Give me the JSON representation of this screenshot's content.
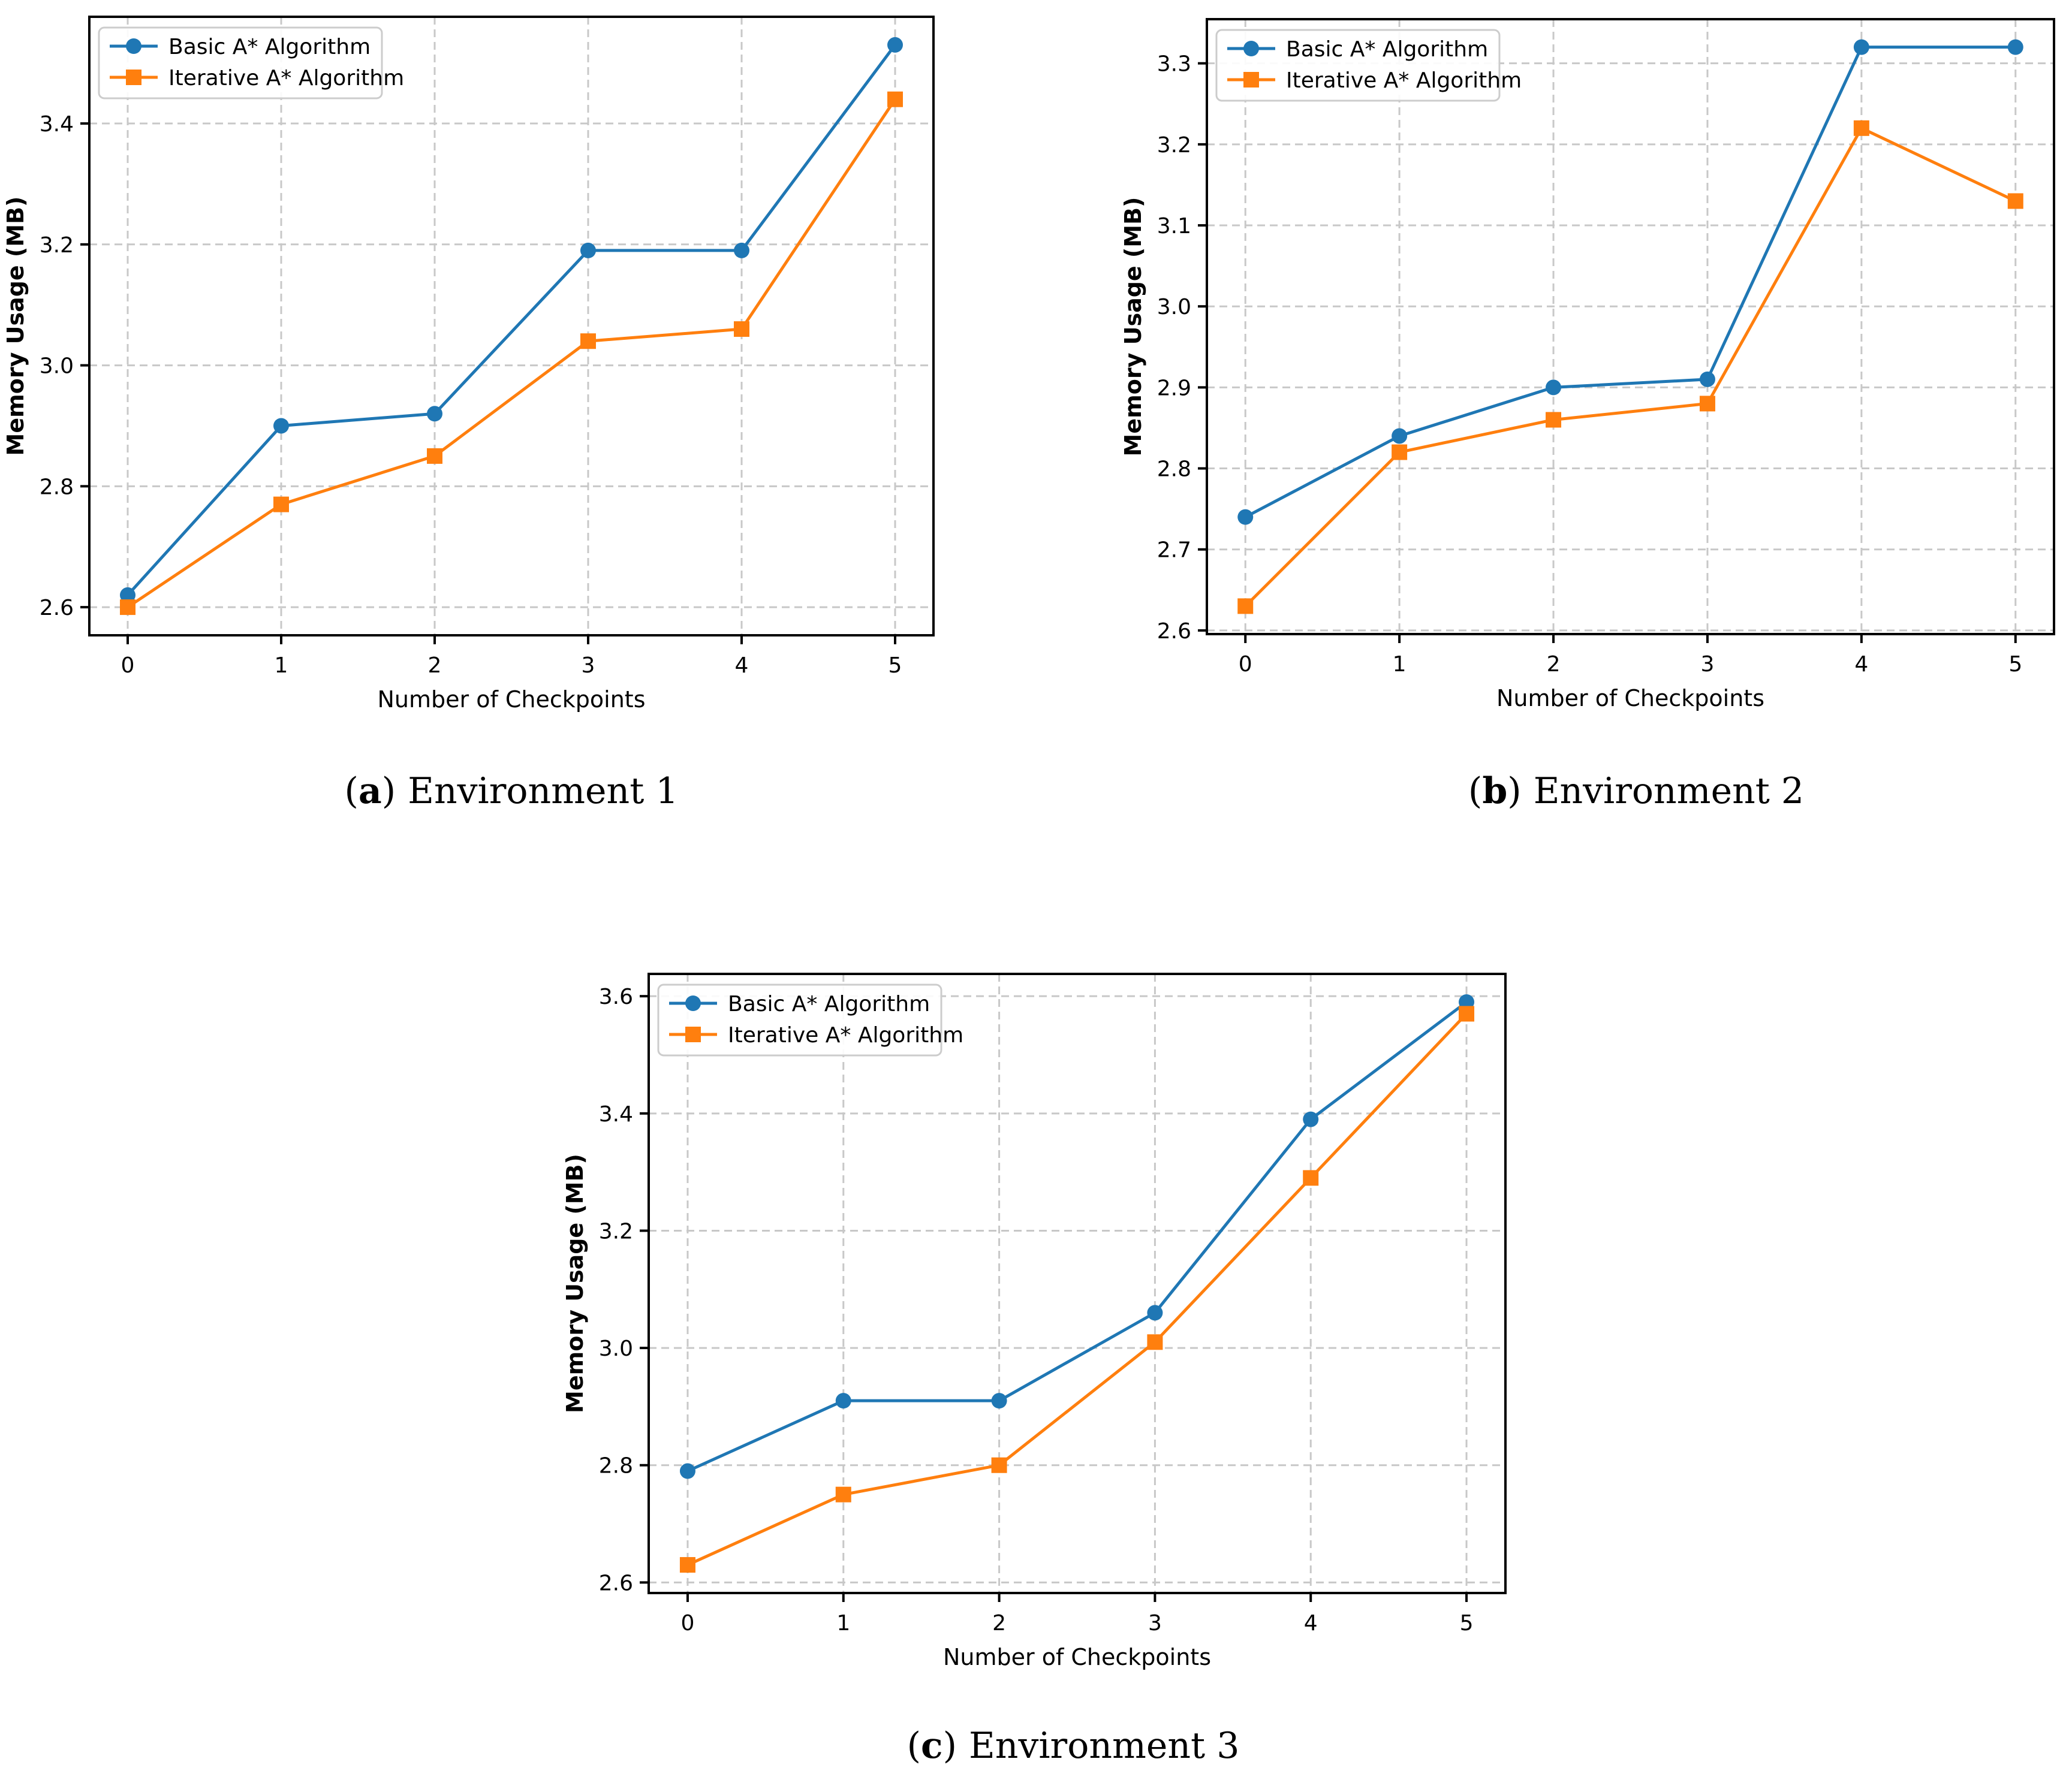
{
  "figure": {
    "background": "#ffffff",
    "grid_color": "#c8c8c8",
    "axis_color": "#000000",
    "legend_border_color": "#cccccc",
    "accent_blue": "#1f77b4",
    "accent_orange": "#ff7f0e"
  },
  "chart_data": [
    {
      "id": "env1",
      "type": "line",
      "caption": {
        "prefix": "(",
        "letter": "a",
        "suffix": ")",
        "text": "Environment 1"
      },
      "xlabel": "Number of Checkpoints",
      "ylabel": "Memory Usage (MB)",
      "x": [
        0,
        1,
        2,
        3,
        4,
        5
      ],
      "xtick_labels": [
        "0",
        "1",
        "2",
        "3",
        "4",
        "5"
      ],
      "ytick_labels": [
        "2.6",
        "2.8",
        "3.0",
        "3.2",
        "3.4"
      ],
      "xlim": [
        -0.25,
        5.25
      ],
      "ylim": [
        2.5535,
        3.5765
      ],
      "grid": true,
      "legend_position": "upper left",
      "series": [
        {
          "sid": "basic-a-star",
          "name": "Basic A* Algorithm",
          "color": "#1f77b4",
          "marker": "circle",
          "values": [
            2.62,
            2.9,
            2.92,
            3.19,
            3.19,
            3.53
          ]
        },
        {
          "sid": "iterative-a-star",
          "name": "Iterative A* Algorithm",
          "color": "#ff7f0e",
          "marker": "square",
          "values": [
            2.6,
            2.77,
            2.85,
            3.04,
            3.06,
            3.44
          ]
        }
      ]
    },
    {
      "id": "env2",
      "type": "line",
      "caption": {
        "prefix": "(",
        "letter": "b",
        "suffix": ")",
        "text": "Environment 2"
      },
      "xlabel": "Number of Checkpoints",
      "ylabel": "Memory Usage (MB)",
      "x": [
        0,
        1,
        2,
        3,
        4,
        5
      ],
      "xtick_labels": [
        "0",
        "1",
        "2",
        "3",
        "4",
        "5"
      ],
      "ytick_labels": [
        "2.6",
        "2.7",
        "2.8",
        "2.9",
        "3.0",
        "3.1",
        "3.2",
        "3.3"
      ],
      "xlim": [
        -0.25,
        5.25
      ],
      "ylim": [
        2.5955,
        3.3545
      ],
      "grid": true,
      "legend_position": "upper left",
      "series": [
        {
          "sid": "basic-a-star",
          "name": "Basic A* Algorithm",
          "color": "#1f77b4",
          "marker": "circle",
          "values": [
            2.74,
            2.84,
            2.9,
            2.91,
            3.32,
            3.32
          ]
        },
        {
          "sid": "iterative-a-star",
          "name": "Iterative A* Algorithm",
          "color": "#ff7f0e",
          "marker": "square",
          "values": [
            2.63,
            2.82,
            2.86,
            2.88,
            3.22,
            3.13
          ]
        }
      ]
    },
    {
      "id": "env3",
      "type": "line",
      "caption": {
        "prefix": "(",
        "letter": "c",
        "suffix": ")",
        "text": "Environment 3"
      },
      "xlabel": "Number of Checkpoints",
      "ylabel": "Memory Usage (MB)",
      "x": [
        0,
        1,
        2,
        3,
        4,
        5
      ],
      "xtick_labels": [
        "0",
        "1",
        "2",
        "3",
        "4",
        "5"
      ],
      "ytick_labels": [
        "2.6",
        "2.8",
        "3.0",
        "3.2",
        "3.4",
        "3.6"
      ],
      "xlim": [
        -0.25,
        5.25
      ],
      "ylim": [
        2.582,
        3.638
      ],
      "grid": true,
      "legend_position": "upper left",
      "series": [
        {
          "sid": "basic-a-star",
          "name": "Basic A* Algorithm",
          "color": "#1f77b4",
          "marker": "circle",
          "values": [
            2.79,
            2.91,
            2.91,
            3.06,
            3.39,
            3.59
          ]
        },
        {
          "sid": "iterative-a-star",
          "name": "Iterative A* Algorithm",
          "color": "#ff7f0e",
          "marker": "square",
          "values": [
            2.63,
            2.75,
            2.8,
            3.01,
            3.29,
            3.57
          ]
        }
      ]
    }
  ]
}
